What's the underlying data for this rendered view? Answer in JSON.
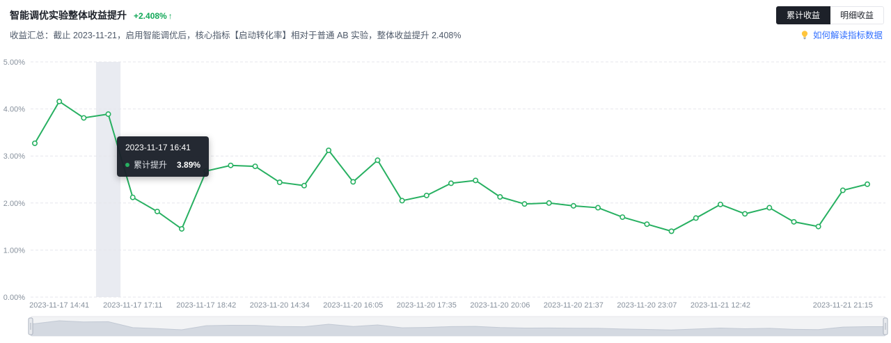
{
  "header": {
    "title": "智能调优实验整体收益提升",
    "delta": "+2.408%",
    "delta_arrow": "↑",
    "view_tabs": [
      {
        "label": "累计收益",
        "active": true
      },
      {
        "label": "明细收益",
        "active": false
      }
    ],
    "summary": "收益汇总：截止 2023-11-21，启用智能调优后，核心指标【启动转化率】相对于普通 AB 实验，整体收益提升 2.408%",
    "help_link": "如何解读指标数据"
  },
  "tooltip": {
    "time": "2023-11-17 16:41",
    "series": "累计提升",
    "value": "3.89%"
  },
  "chart_data": {
    "type": "line",
    "title": "智能调优实验整体收益提升",
    "series": [
      {
        "name": "累计提升",
        "values": [
          3.27,
          4.16,
          3.81,
          3.89,
          2.12,
          1.82,
          1.45,
          2.68,
          2.8,
          2.78,
          2.44,
          2.37,
          3.12,
          2.45,
          2.91,
          2.05,
          2.16,
          2.42,
          2.48,
          2.13,
          1.98,
          2.0,
          1.94,
          1.9,
          1.7,
          1.55,
          1.4,
          1.68,
          1.97,
          1.77,
          1.9,
          1.6,
          1.5,
          2.27,
          2.4
        ]
      }
    ],
    "x_tick_labels": [
      "2023-11-17 14:41",
      "2023-11-17 17:11",
      "2023-11-17 18:42",
      "2023-11-20 14:34",
      "2023-11-20 16:05",
      "2023-11-20 17:35",
      "2023-11-20 20:06",
      "2023-11-20 21:37",
      "2023-11-20 23:07",
      "2023-11-21 12:42",
      "2023-11-21 21:15"
    ],
    "x_tick_indices": [
      1,
      4,
      7,
      10,
      13,
      16,
      19,
      22,
      25,
      28,
      33
    ],
    "y_tick_labels": [
      "0.00%",
      "1.00%",
      "2.00%",
      "3.00%",
      "4.00%",
      "5.00%"
    ],
    "ylim": [
      0,
      5
    ],
    "unit": "%",
    "grid": "horizontal-dashed",
    "legend": "none",
    "highlight_index": 3,
    "hovered_point": {
      "index": 3,
      "value": 3.89,
      "time": "2023-11-17 16:41"
    },
    "datazoom": "full-range-slider"
  },
  "colors": {
    "line_green": "#27b061",
    "delta_green": "#12a858",
    "title_dark": "#1d2129",
    "summary_gray": "#4e5969",
    "axis_gray": "#86909c",
    "grid_line": "#e5e6eb",
    "band_fill": "#e9ebf1",
    "tooltip_bg": "#1b202a",
    "link_blue": "#3370ff",
    "active_tab_bg": "#1d2129",
    "brush_track": "#f2f3f5",
    "brush_area": "#d4d9e1",
    "brush_edge": "#c2c9d4",
    "handle_fill": "#e8eaee",
    "handle_stroke": "#aab1bd"
  }
}
